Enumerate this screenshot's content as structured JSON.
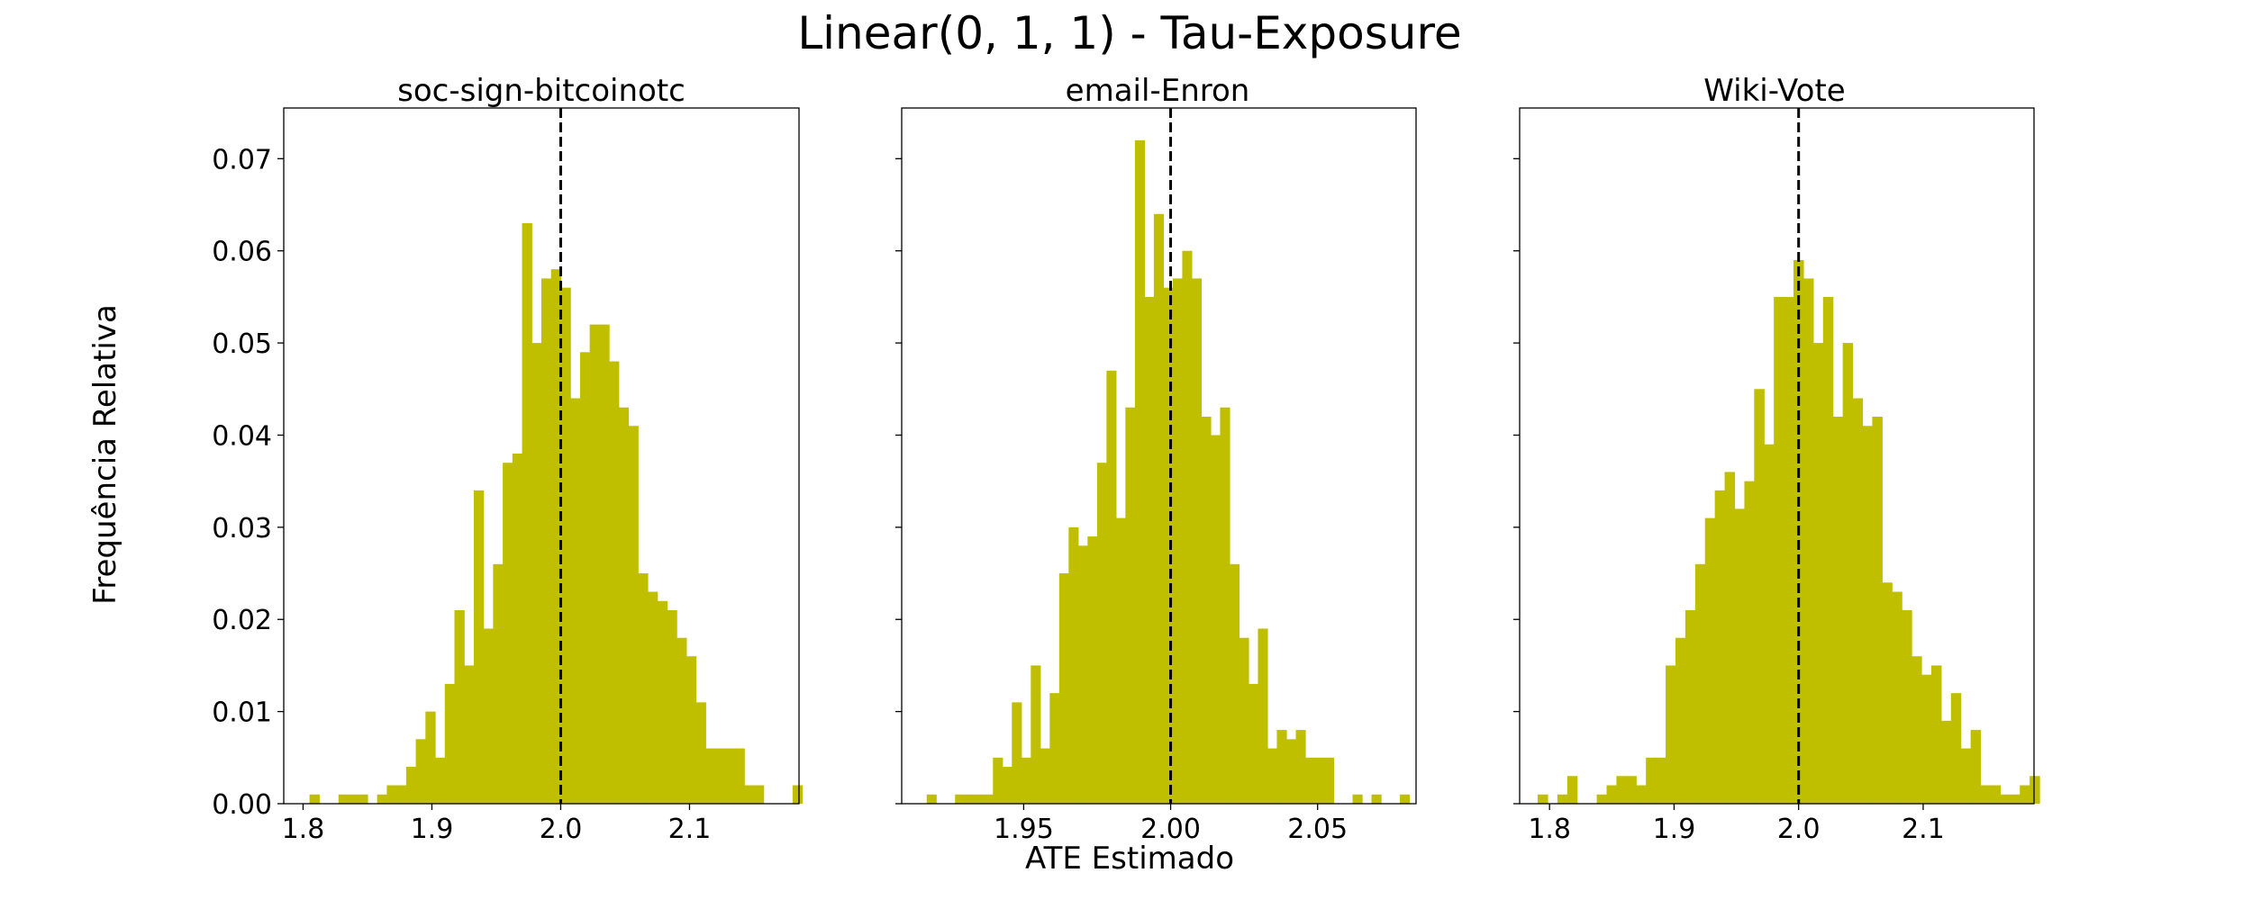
{
  "figure": {
    "title": "Linear(0, 1, 1) - Tau-Exposure",
    "ylabel": "Frequência Relativa",
    "xlabel": "ATE Estimado"
  },
  "chart_data": [
    {
      "type": "bar",
      "title": "soc-sign-bitcoinotc",
      "bar_color": "#bfbf00",
      "reference_line": 2.0,
      "xlim": [
        1.785,
        2.185
      ],
      "ylim": [
        0,
        0.0755
      ],
      "xticks": [
        1.8,
        1.9,
        2.0,
        2.1
      ],
      "xtick_labels": [
        "1.8",
        "1.9",
        "2.0",
        "2.1"
      ],
      "yticks": [
        0.0,
        0.01,
        0.02,
        0.03,
        0.04,
        0.05,
        0.06,
        0.07
      ],
      "ytick_labels": [
        "0.00",
        "0.01",
        "0.02",
        "0.03",
        "0.04",
        "0.05",
        "0.06",
        "0.07"
      ],
      "bin_start": 1.805,
      "bin_width": 0.0075,
      "values": [
        0.001,
        0.0,
        0.0,
        0.001,
        0.001,
        0.001,
        0.0,
        0.001,
        0.002,
        0.002,
        0.004,
        0.007,
        0.01,
        0.005,
        0.013,
        0.021,
        0.015,
        0.034,
        0.019,
        0.026,
        0.037,
        0.038,
        0.063,
        0.05,
        0.057,
        0.058,
        0.056,
        0.044,
        0.049,
        0.052,
        0.052,
        0.048,
        0.043,
        0.041,
        0.025,
        0.023,
        0.022,
        0.021,
        0.018,
        0.016,
        0.011,
        0.006,
        0.006,
        0.006,
        0.006,
        0.002,
        0.002,
        0.0,
        0.0,
        0.0,
        0.002
      ]
    },
    {
      "type": "bar",
      "title": "email-Enron",
      "bar_color": "#bfbf00",
      "reference_line": 2.0,
      "xlim": [
        1.9085,
        2.0835
      ],
      "ylim": [
        0,
        0.0755
      ],
      "xticks": [
        1.95,
        2.0,
        2.05
      ],
      "xtick_labels": [
        "1.95",
        "2.00",
        "2.05"
      ],
      "yticks": [
        0.0,
        0.01,
        0.02,
        0.03,
        0.04,
        0.05,
        0.06,
        0.07
      ],
      "ytick_labels": [],
      "bin_start": 1.917,
      "bin_width": 0.00322,
      "values": [
        0.001,
        0.0,
        0.0,
        0.001,
        0.001,
        0.001,
        0.001,
        0.005,
        0.004,
        0.011,
        0.005,
        0.015,
        0.006,
        0.012,
        0.025,
        0.03,
        0.028,
        0.029,
        0.037,
        0.047,
        0.031,
        0.043,
        0.072,
        0.055,
        0.064,
        0.056,
        0.057,
        0.06,
        0.057,
        0.042,
        0.04,
        0.043,
        0.026,
        0.018,
        0.013,
        0.019,
        0.006,
        0.008,
        0.007,
        0.008,
        0.005,
        0.005,
        0.005,
        0.0,
        0.0,
        0.001,
        0.0,
        0.001,
        0.0,
        0.0,
        0.001
      ]
    },
    {
      "type": "bar",
      "title": "Wiki-Vote",
      "bar_color": "#bfbf00",
      "reference_line": 2.0,
      "xlim": [
        1.776,
        2.189
      ],
      "ylim": [
        0,
        0.0755
      ],
      "xticks": [
        1.8,
        1.9,
        2.0,
        2.1
      ],
      "xtick_labels": [
        "1.8",
        "1.9",
        "2.0",
        "2.1"
      ],
      "yticks": [
        0.0,
        0.01,
        0.02,
        0.03,
        0.04,
        0.05,
        0.06,
        0.07
      ],
      "ytick_labels": [],
      "bin_start": 1.7905,
      "bin_width": 0.0079,
      "values": [
        0.001,
        0.0,
        0.001,
        0.003,
        0.0,
        0.0,
        0.001,
        0.002,
        0.003,
        0.003,
        0.002,
        0.005,
        0.005,
        0.015,
        0.018,
        0.021,
        0.026,
        0.031,
        0.034,
        0.036,
        0.032,
        0.035,
        0.045,
        0.039,
        0.055,
        0.055,
        0.059,
        0.057,
        0.05,
        0.055,
        0.042,
        0.05,
        0.044,
        0.041,
        0.042,
        0.024,
        0.023,
        0.021,
        0.016,
        0.014,
        0.015,
        0.009,
        0.012,
        0.006,
        0.008,
        0.002,
        0.002,
        0.001,
        0.001,
        0.002,
        0.003
      ]
    }
  ]
}
